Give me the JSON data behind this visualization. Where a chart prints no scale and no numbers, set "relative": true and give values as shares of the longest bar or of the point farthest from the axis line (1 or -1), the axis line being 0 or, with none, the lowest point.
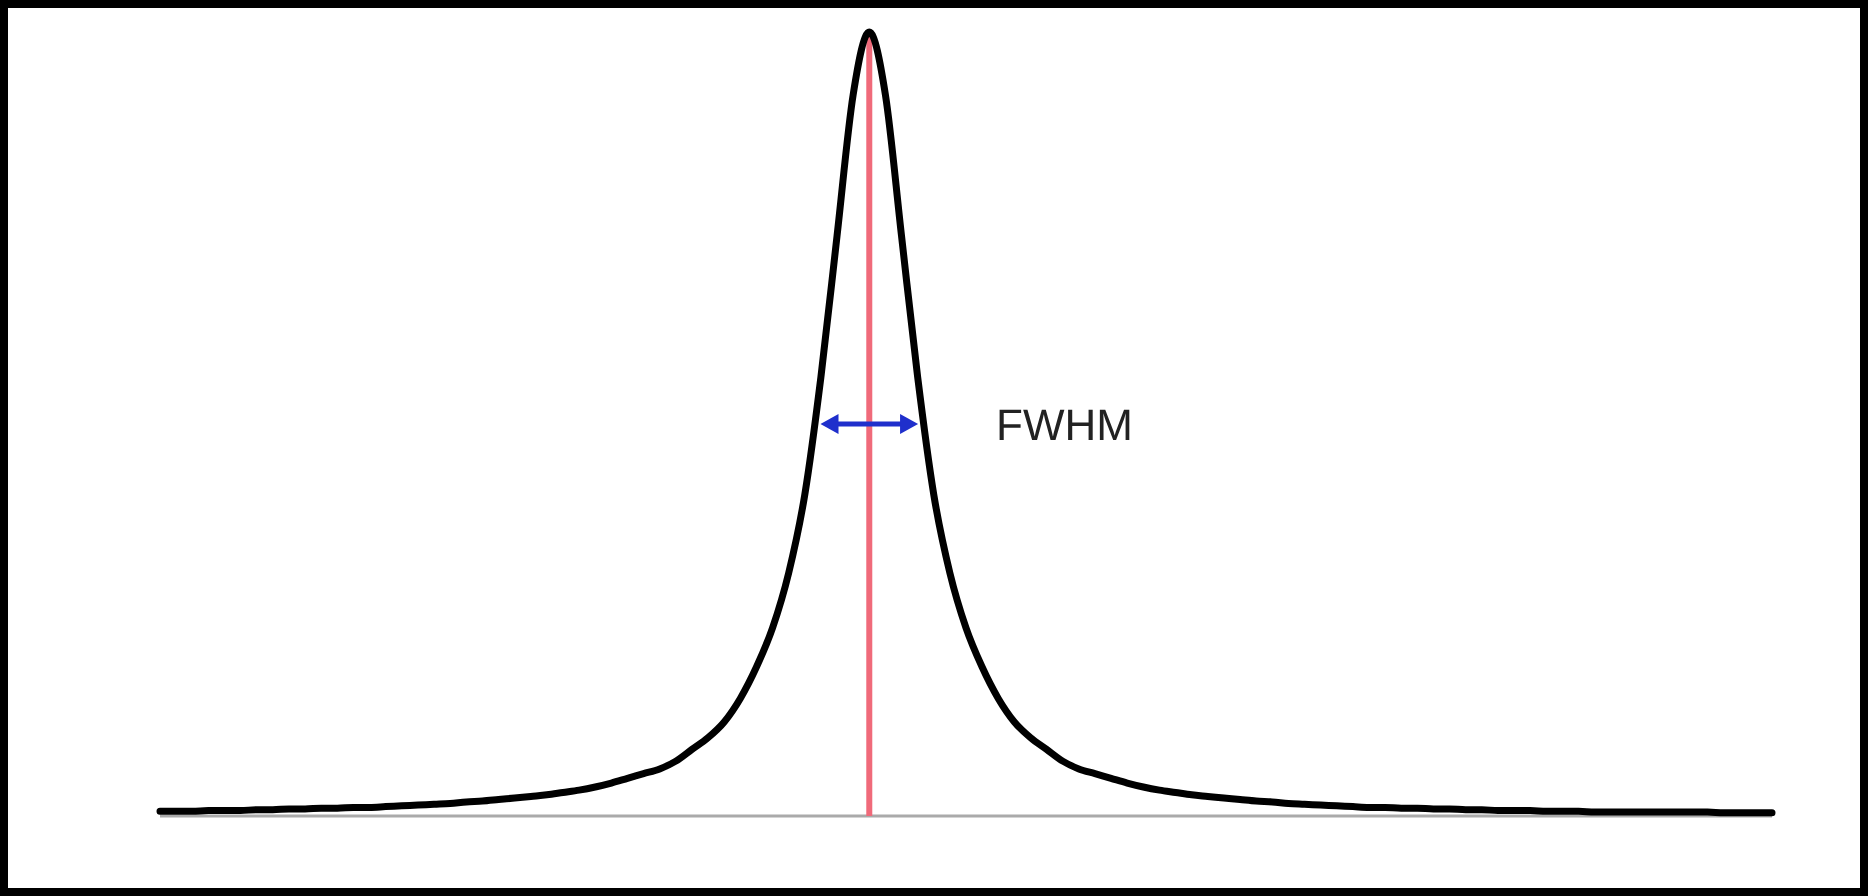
{
  "chart_data": {
    "type": "line",
    "relative": true,
    "categories": [
      null,
      null,
      null,
      null,
      null,
      null,
      null,
      null,
      null,
      null,
      null,
      null,
      null,
      null,
      null,
      null,
      null,
      null,
      null,
      null,
      null,
      null,
      null,
      null,
      null,
      null,
      null,
      null,
      null,
      null,
      null,
      null,
      null,
      null,
      null,
      null,
      null,
      null,
      null,
      null,
      null,
      null,
      null,
      null,
      null,
      null,
      null,
      null,
      null,
      null,
      null,
      null,
      null,
      null,
      null,
      null,
      null,
      null,
      null,
      null,
      null,
      null,
      null,
      null,
      null,
      null,
      null,
      null,
      null,
      null,
      null,
      null,
      null,
      null,
      null,
      null,
      null,
      null,
      null,
      null,
      null,
      null,
      null,
      null,
      null,
      null,
      null,
      null,
      null,
      null,
      null,
      null,
      null,
      null,
      null,
      null,
      null,
      null,
      null,
      null,
      null
    ],
    "series": [
      {
        "color": "#000000",
        "values": [
          0.006,
          0.006,
          0.006,
          0.007,
          0.007,
          0.007,
          0.008,
          0.008,
          0.009,
          0.009,
          0.01,
          0.01,
          0.011,
          0.011,
          0.012,
          0.013,
          0.014,
          0.015,
          0.016,
          0.018,
          0.019,
          0.021,
          0.023,
          0.025,
          0.027,
          0.03,
          0.033,
          0.037,
          0.042,
          0.048,
          0.054,
          0.06,
          0.07,
          0.085,
          0.1,
          0.12,
          0.15,
          0.19,
          0.24,
          0.31,
          0.41,
          0.56,
          0.74,
          0.92,
          1,
          0.92,
          0.74,
          0.56,
          0.41,
          0.31,
          0.24,
          0.19,
          0.15,
          0.12,
          0.1,
          0.085,
          0.07,
          0.06,
          0.054,
          0.048,
          0.042,
          0.037,
          0.033,
          0.03,
          0.027,
          0.025,
          0.023,
          0.021,
          0.019,
          0.018,
          0.016,
          0.015,
          0.014,
          0.013,
          0.012,
          0.011,
          0.011,
          0.01,
          0.01,
          0.009,
          0.009,
          0.008,
          0.008,
          0.007,
          0.007,
          0.007,
          0.006,
          0.006,
          0.006,
          0.005,
          0.005,
          0.005,
          0.005,
          0.005,
          0.005,
          0.005,
          0.005,
          0.004,
          0.004,
          0.004,
          0.004
        ]
      }
    ],
    "annotations": [
      "FWHM"
    ],
    "grid": false,
    "marker": "none",
    "line_style": "solid"
  }
}
